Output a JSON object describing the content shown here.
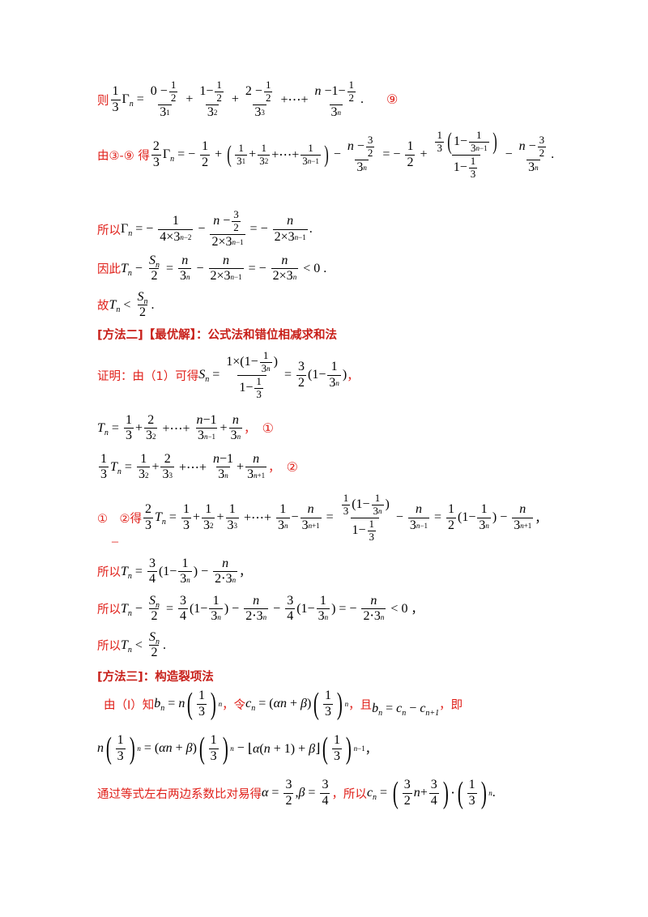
{
  "prefix_ze": "则",
  "prefix_you": "由③-⑨ 得",
  "prefix_suoyi": "所以",
  "prefix_yinci": "因此",
  "prefix_gu": "故",
  "mark_9": "⑨",
  "mark_1": "①",
  "mark_2": "②",
  "mark_1b": "①　②得",
  "dash": "–",
  "method2_heading": "[方法二]【最优解】：公式法和错位相减求和法",
  "method2_intro": "证明：由（1）可得",
  "method3_heading": "[方法三]：构造裂项法",
  "method3_intro": "由（Ⅰ）知",
  "method3_let": "，令",
  "method3_and": "，且",
  "method3_ie": "，即",
  "method3_compare": "通过等式左右两边系数比对易得",
  "method3_so": "，所以",
  "comma": "，",
  "period": ".",
  "colors": {
    "red": "#e0201a",
    "heading": "#c8201a"
  }
}
